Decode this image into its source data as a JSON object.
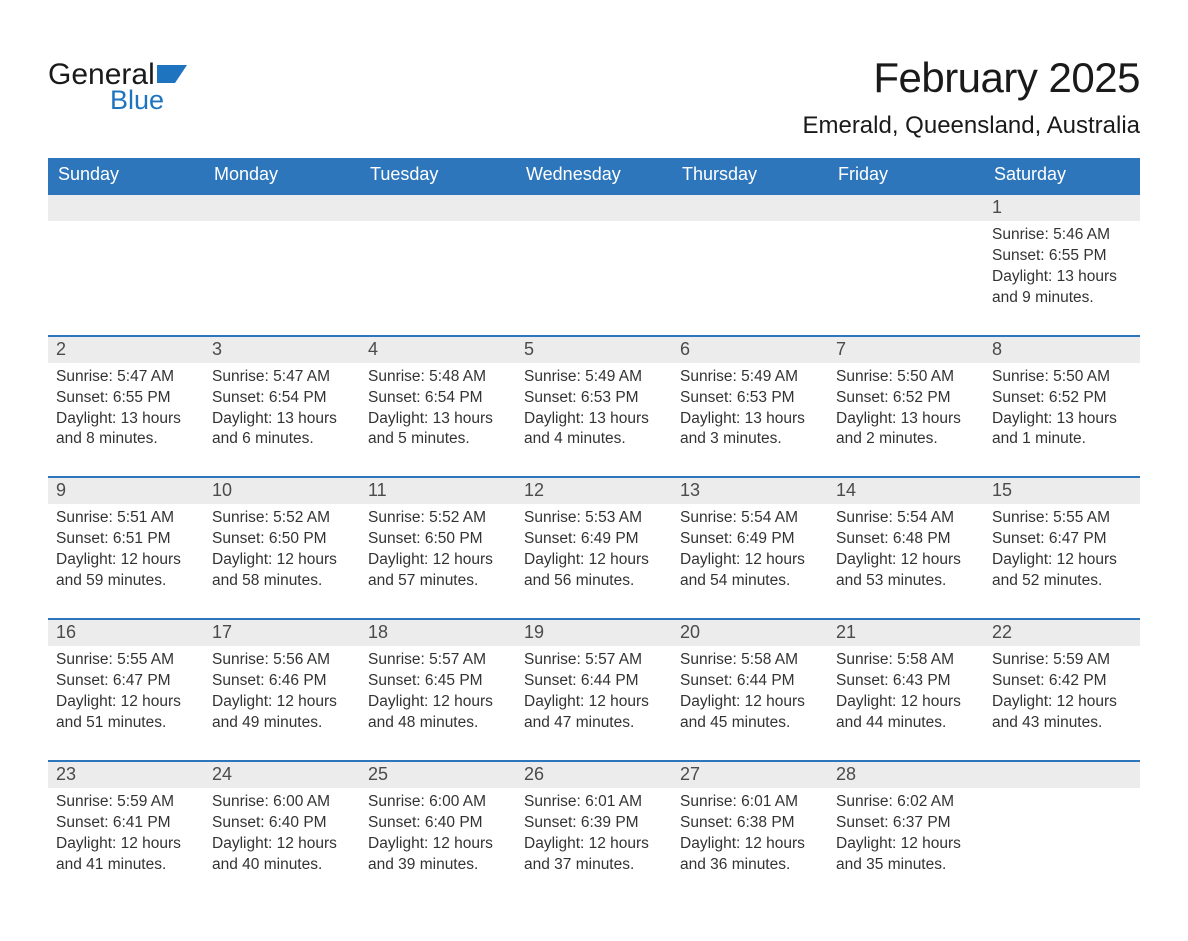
{
  "brand": {
    "part1": "General",
    "part2": "Blue",
    "logo_color": "#1f74c0"
  },
  "title": "February 2025",
  "location": "Emerald, Queensland, Australia",
  "colors": {
    "header_bg": "#2d76bb",
    "header_text": "#ffffff",
    "row_separator": "#2d76bb",
    "daynum_bg": "#ececec",
    "body_text": "#333333",
    "page_bg": "#ffffff"
  },
  "daysOfWeek": [
    "Sunday",
    "Monday",
    "Tuesday",
    "Wednesday",
    "Thursday",
    "Friday",
    "Saturday"
  ],
  "labels": {
    "sunrise": "Sunrise",
    "sunset": "Sunset",
    "daylight": "Daylight"
  },
  "weeks": [
    [
      null,
      null,
      null,
      null,
      null,
      null,
      {
        "n": 1,
        "sr": "5:46 AM",
        "ss": "6:55 PM",
        "dl": "13 hours and 9 minutes."
      }
    ],
    [
      {
        "n": 2,
        "sr": "5:47 AM",
        "ss": "6:55 PM",
        "dl": "13 hours and 8 minutes."
      },
      {
        "n": 3,
        "sr": "5:47 AM",
        "ss": "6:54 PM",
        "dl": "13 hours and 6 minutes."
      },
      {
        "n": 4,
        "sr": "5:48 AM",
        "ss": "6:54 PM",
        "dl": "13 hours and 5 minutes."
      },
      {
        "n": 5,
        "sr": "5:49 AM",
        "ss": "6:53 PM",
        "dl": "13 hours and 4 minutes."
      },
      {
        "n": 6,
        "sr": "5:49 AM",
        "ss": "6:53 PM",
        "dl": "13 hours and 3 minutes."
      },
      {
        "n": 7,
        "sr": "5:50 AM",
        "ss": "6:52 PM",
        "dl": "13 hours and 2 minutes."
      },
      {
        "n": 8,
        "sr": "5:50 AM",
        "ss": "6:52 PM",
        "dl": "13 hours and 1 minute."
      }
    ],
    [
      {
        "n": 9,
        "sr": "5:51 AM",
        "ss": "6:51 PM",
        "dl": "12 hours and 59 minutes."
      },
      {
        "n": 10,
        "sr": "5:52 AM",
        "ss": "6:50 PM",
        "dl": "12 hours and 58 minutes."
      },
      {
        "n": 11,
        "sr": "5:52 AM",
        "ss": "6:50 PM",
        "dl": "12 hours and 57 minutes."
      },
      {
        "n": 12,
        "sr": "5:53 AM",
        "ss": "6:49 PM",
        "dl": "12 hours and 56 minutes."
      },
      {
        "n": 13,
        "sr": "5:54 AM",
        "ss": "6:49 PM",
        "dl": "12 hours and 54 minutes."
      },
      {
        "n": 14,
        "sr": "5:54 AM",
        "ss": "6:48 PM",
        "dl": "12 hours and 53 minutes."
      },
      {
        "n": 15,
        "sr": "5:55 AM",
        "ss": "6:47 PM",
        "dl": "12 hours and 52 minutes."
      }
    ],
    [
      {
        "n": 16,
        "sr": "5:55 AM",
        "ss": "6:47 PM",
        "dl": "12 hours and 51 minutes."
      },
      {
        "n": 17,
        "sr": "5:56 AM",
        "ss": "6:46 PM",
        "dl": "12 hours and 49 minutes."
      },
      {
        "n": 18,
        "sr": "5:57 AM",
        "ss": "6:45 PM",
        "dl": "12 hours and 48 minutes."
      },
      {
        "n": 19,
        "sr": "5:57 AM",
        "ss": "6:44 PM",
        "dl": "12 hours and 47 minutes."
      },
      {
        "n": 20,
        "sr": "5:58 AM",
        "ss": "6:44 PM",
        "dl": "12 hours and 45 minutes."
      },
      {
        "n": 21,
        "sr": "5:58 AM",
        "ss": "6:43 PM",
        "dl": "12 hours and 44 minutes."
      },
      {
        "n": 22,
        "sr": "5:59 AM",
        "ss": "6:42 PM",
        "dl": "12 hours and 43 minutes."
      }
    ],
    [
      {
        "n": 23,
        "sr": "5:59 AM",
        "ss": "6:41 PM",
        "dl": "12 hours and 41 minutes."
      },
      {
        "n": 24,
        "sr": "6:00 AM",
        "ss": "6:40 PM",
        "dl": "12 hours and 40 minutes."
      },
      {
        "n": 25,
        "sr": "6:00 AM",
        "ss": "6:40 PM",
        "dl": "12 hours and 39 minutes."
      },
      {
        "n": 26,
        "sr": "6:01 AM",
        "ss": "6:39 PM",
        "dl": "12 hours and 37 minutes."
      },
      {
        "n": 27,
        "sr": "6:01 AM",
        "ss": "6:38 PM",
        "dl": "12 hours and 36 minutes."
      },
      {
        "n": 28,
        "sr": "6:02 AM",
        "ss": "6:37 PM",
        "dl": "12 hours and 35 minutes."
      },
      null
    ]
  ]
}
